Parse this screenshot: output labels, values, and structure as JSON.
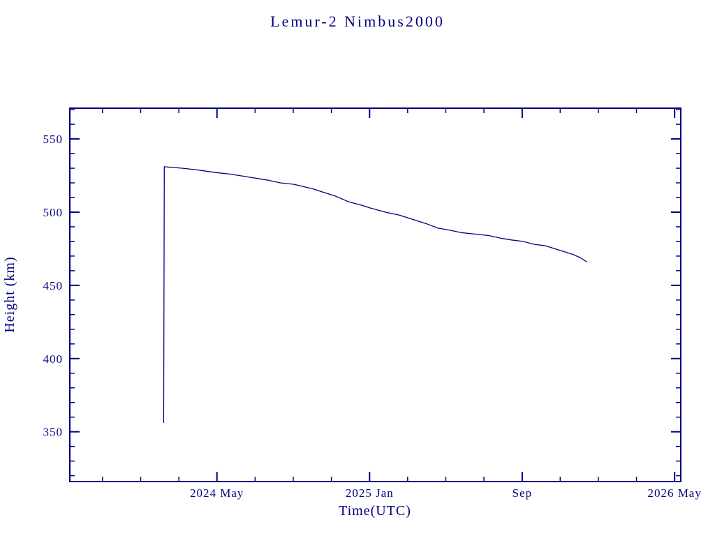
{
  "page": {
    "background": "#ffffff",
    "accent": "#000080"
  },
  "chart_data": {
    "type": "line",
    "title": "Lemur-2 Nimbus2000",
    "xlabel": "Time(UTC)",
    "ylabel": "Height (km)",
    "line_color": "#000080",
    "grid": false,
    "legend": "none",
    "xlim": [
      2023.69,
      2026.36
    ],
    "ylim": [
      316,
      571
    ],
    "xticks": [
      {
        "value": 2024.333,
        "label": "2024 May"
      },
      {
        "value": 2025.0,
        "label": "2025 Jan"
      },
      {
        "value": 2025.667,
        "label": "Sep"
      },
      {
        "value": 2026.333,
        "label": "2026 May"
      }
    ],
    "xminor_step": 0.166667,
    "yticks": [
      {
        "value": 350,
        "label": "350"
      },
      {
        "value": 400,
        "label": "400"
      },
      {
        "value": 450,
        "label": "450"
      },
      {
        "value": 500,
        "label": "500"
      },
      {
        "value": 550,
        "label": "550"
      }
    ],
    "yminor_step": 10,
    "series": [
      {
        "name": "height",
        "points": [
          [
            2024.1,
            356
          ],
          [
            2024.103,
            531
          ],
          [
            2024.18,
            530
          ],
          [
            2024.24,
            529
          ],
          [
            2024.33,
            527
          ],
          [
            2024.39,
            526
          ],
          [
            2024.47,
            524
          ],
          [
            2024.55,
            522
          ],
          [
            2024.61,
            520
          ],
          [
            2024.67,
            519
          ],
          [
            2024.75,
            516
          ],
          [
            2024.79,
            514
          ],
          [
            2024.85,
            511
          ],
          [
            2024.91,
            507
          ],
          [
            2024.96,
            505
          ],
          [
            2025.0,
            503
          ],
          [
            2025.07,
            500
          ],
          [
            2025.13,
            498
          ],
          [
            2025.19,
            495
          ],
          [
            2025.25,
            492
          ],
          [
            2025.3,
            489
          ],
          [
            2025.34,
            488
          ],
          [
            2025.4,
            486
          ],
          [
            2025.46,
            485
          ],
          [
            2025.52,
            484
          ],
          [
            2025.58,
            482
          ],
          [
            2025.62,
            481
          ],
          [
            2025.67,
            480
          ],
          [
            2025.72,
            478
          ],
          [
            2025.77,
            477
          ],
          [
            2025.83,
            474
          ],
          [
            2025.89,
            471
          ],
          [
            2025.92,
            469
          ],
          [
            2025.95,
            466
          ]
        ]
      }
    ]
  }
}
